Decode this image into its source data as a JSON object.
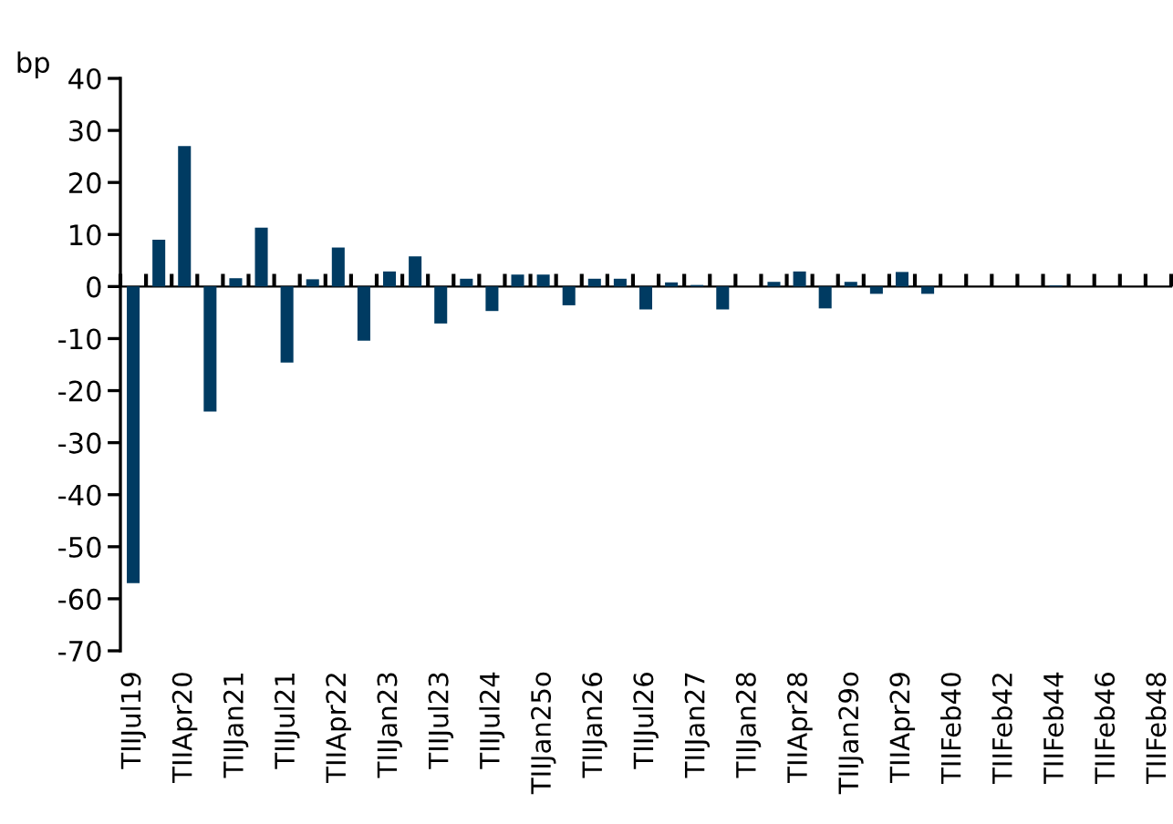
{
  "chart_data": {
    "type": "bar",
    "ylabel": "bp",
    "categories": [
      "TIIJul19",
      null,
      "TIIApr20",
      null,
      "TIIJan21",
      null,
      "TIIJul21",
      null,
      "TIIApr22",
      null,
      "TIIJan23",
      null,
      "TIIJul23",
      null,
      "TIIJul24",
      null,
      "TIIJan25o",
      null,
      "TIIJan26",
      null,
      "TIIJul26",
      null,
      "TIIJan27",
      null,
      "TIIJan28",
      null,
      "TIIApr28",
      null,
      "TIIJan29o",
      null,
      "TIIApr29",
      null,
      "TIIFeb40",
      null,
      "TIIFeb42",
      null,
      "TIIFeb44",
      null,
      "TIIFeb46",
      null,
      "TIIFeb48"
    ],
    "values": [
      -57,
      9,
      27,
      -24,
      1.6,
      11.3,
      -14.6,
      1.4,
      7.5,
      -10.4,
      2.9,
      5.8,
      -7.1,
      1.5,
      -4.7,
      2.3,
      2.3,
      -3.6,
      1.5,
      1.5,
      -4.4,
      0.8,
      0.3,
      -4.4,
      0,
      0.9,
      2.9,
      -4.2,
      0.9,
      -1.4,
      2.8,
      -1.4,
      0,
      0,
      0,
      0,
      0.2,
      0,
      0,
      0,
      0
    ],
    "color": "#003b62",
    "ylim": [
      -70,
      40
    ],
    "yticks": [
      -70,
      -60,
      -50,
      -40,
      -30,
      -20,
      -10,
      0,
      10,
      20,
      30,
      40
    ],
    "legend": false
  }
}
